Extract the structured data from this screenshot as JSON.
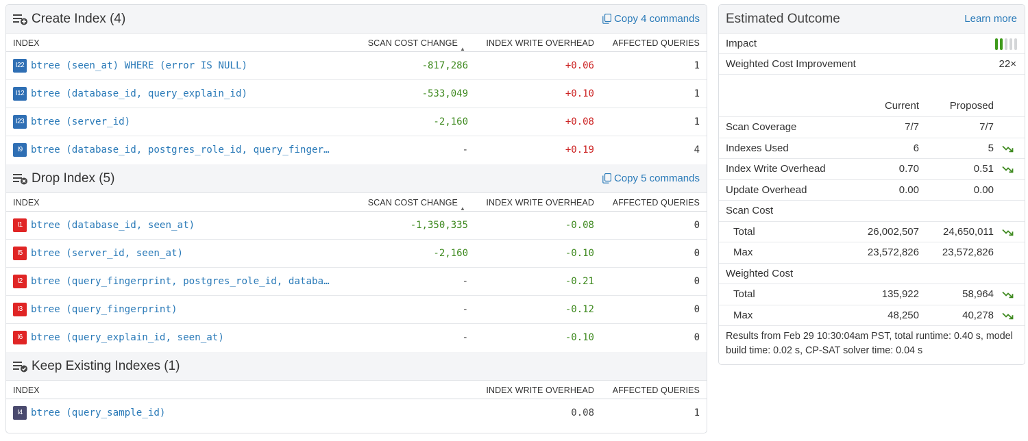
{
  "create_section": {
    "title": "Create Index (4)",
    "copy_label": "Copy 4 commands",
    "columns": {
      "index": "INDEX",
      "scan": "SCAN COST CHANGE",
      "sort_icon": "▲",
      "write": "INDEX WRITE OVERHEAD",
      "affected": "AFFECTED QUERIES"
    },
    "rows": [
      {
        "badge": "I22",
        "definition": "btree (seen_at) WHERE (error IS NULL)",
        "scan": "-817,286",
        "write": "+0.06",
        "affected": "1"
      },
      {
        "badge": "I12",
        "definition": "btree (database_id, query_explain_id)",
        "scan": "-533,049",
        "write": "+0.10",
        "affected": "1"
      },
      {
        "badge": "I23",
        "definition": "btree (server_id)",
        "scan": "-2,160",
        "write": "+0.08",
        "affected": "1"
      },
      {
        "badge": "I9",
        "definition": "btree (database_id, postgres_role_id, query_finger…",
        "scan": "-",
        "write": "+0.19",
        "affected": "4"
      }
    ]
  },
  "drop_section": {
    "title": "Drop Index (5)",
    "copy_label": "Copy 5 commands",
    "columns": {
      "index": "INDEX",
      "scan": "SCAN COST CHANGE",
      "sort_icon": "▲",
      "write": "INDEX WRITE OVERHEAD",
      "affected": "AFFECTED QUERIES"
    },
    "rows": [
      {
        "badge": "I1",
        "definition": "btree (database_id, seen_at)",
        "scan": "-1,350,335",
        "write": "-0.08",
        "affected": "0"
      },
      {
        "badge": "I5",
        "definition": "btree (server_id, seen_at)",
        "scan": "-2,160",
        "write": "-0.10",
        "affected": "0"
      },
      {
        "badge": "I2",
        "definition": "btree (query_fingerprint, postgres_role_id, databa…",
        "scan": "-",
        "write": "-0.21",
        "affected": "0"
      },
      {
        "badge": "I3",
        "definition": "btree (query_fingerprint)",
        "scan": "-",
        "write": "-0.12",
        "affected": "0"
      },
      {
        "badge": "I6",
        "definition": "btree (query_explain_id, seen_at)",
        "scan": "-",
        "write": "-0.10",
        "affected": "0"
      }
    ]
  },
  "keep_section": {
    "title": "Keep Existing Indexes (1)",
    "columns": {
      "index": "INDEX",
      "write": "INDEX WRITE OVERHEAD",
      "affected": "AFFECTED QUERIES"
    },
    "rows": [
      {
        "badge": "I4",
        "definition": "btree (query_sample_id)",
        "write": "0.08",
        "affected": "1"
      }
    ]
  },
  "outcome": {
    "title": "Estimated Outcome",
    "learn_more": "Learn more",
    "impact_label": "Impact",
    "impact_level": 2,
    "impact_max": 5,
    "weighted_label": "Weighted Cost Improvement",
    "weighted_value": "22×",
    "col_current": "Current",
    "col_proposed": "Proposed",
    "rows": [
      {
        "label": "Scan Coverage",
        "current": "7/7",
        "proposed": "7/7",
        "trend": false,
        "indent": false
      },
      {
        "label": "Indexes Used",
        "current": "6",
        "proposed": "5",
        "trend": true,
        "indent": false
      },
      {
        "label": "Index Write Overhead",
        "current": "0.70",
        "proposed": "0.51",
        "trend": true,
        "indent": false
      },
      {
        "label": "Update Overhead",
        "current": "0.00",
        "proposed": "0.00",
        "trend": false,
        "indent": false
      },
      {
        "label": "Scan Cost",
        "current": "",
        "proposed": "",
        "trend": false,
        "indent": false
      },
      {
        "label": "Total",
        "current": "26,002,507",
        "proposed": "24,650,011",
        "trend": true,
        "indent": true
      },
      {
        "label": "Max",
        "current": "23,572,826",
        "proposed": "23,572,826",
        "trend": false,
        "indent": true
      },
      {
        "label": "Weighted Cost",
        "current": "",
        "proposed": "",
        "trend": false,
        "indent": false
      },
      {
        "label": "Total",
        "current": "135,922",
        "proposed": "58,964",
        "trend": true,
        "indent": true
      },
      {
        "label": "Max",
        "current": "48,250",
        "proposed": "40,278",
        "trend": true,
        "indent": true
      }
    ],
    "footnote": "Results from Feb 29 10:30:04am PST, total runtime: 0.40 s, model build time: 0.02 s, CP-SAT solver time: 0.04 s"
  },
  "colors": {
    "link": "#2a7ab8",
    "green": "#3f8a20",
    "red": "#cc2222",
    "create_badge": "#2f6fb4",
    "drop_badge": "#e02525",
    "keep_badge": "#4a4a6e",
    "impact_on": "#3f9a1c",
    "impact_off": "#d4d6d8"
  },
  "icons": {
    "create": "list-plus-icon",
    "drop": "list-remove-icon",
    "keep": "list-check-icon",
    "copy": "copy-icon",
    "trend": "trend-down-icon"
  }
}
